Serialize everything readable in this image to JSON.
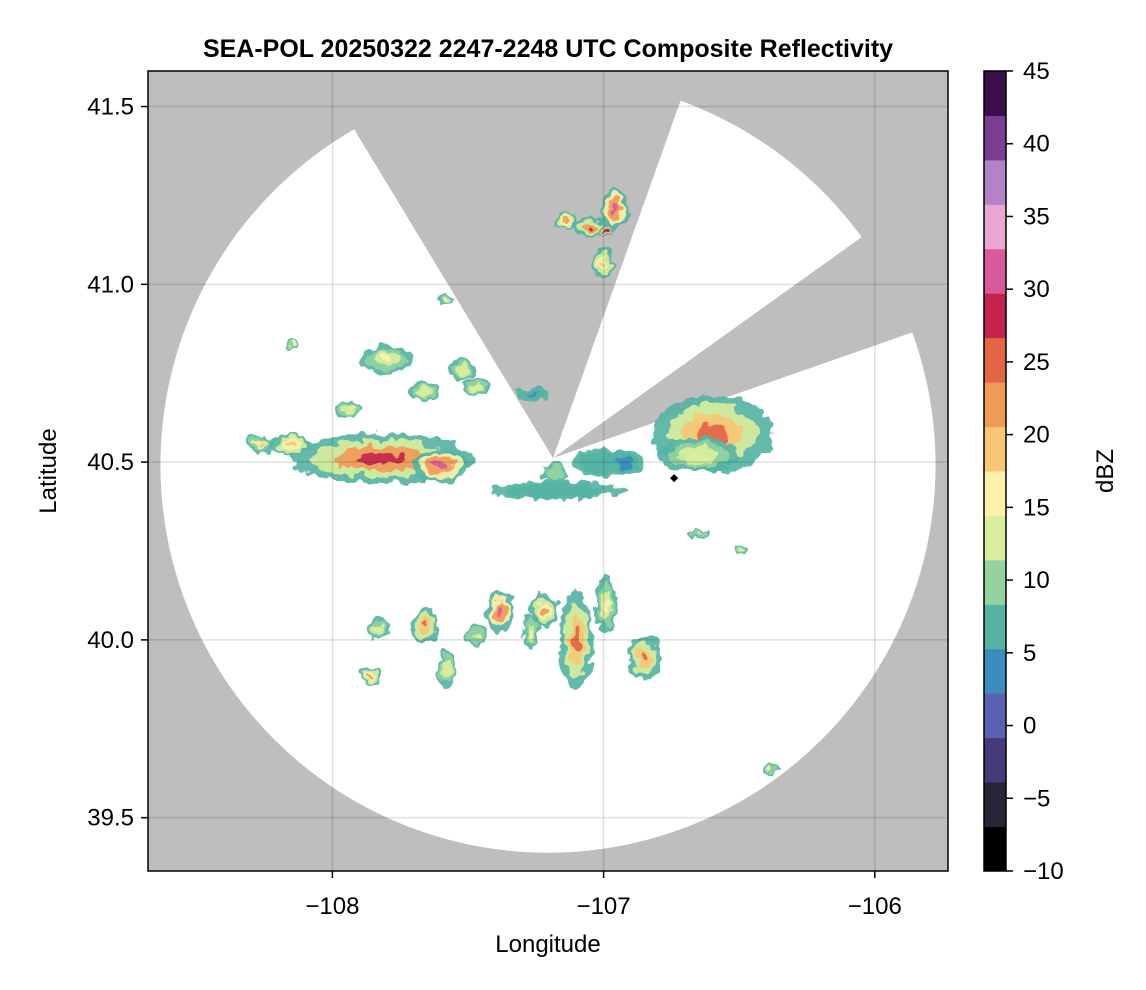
{
  "chart_data": {
    "type": "heatmap",
    "title": "SEA-POL 20250322 2247-2248 UTC Composite Reflectivity",
    "xlabel": "Longitude",
    "ylabel": "Latitude",
    "xlim": [
      -108.68,
      -105.73
    ],
    "ylim": [
      39.35,
      41.6
    ],
    "xticks": [
      -108,
      -107,
      -106
    ],
    "xtick_labels": [
      "−108",
      "−107",
      "−106"
    ],
    "yticks": [
      39.5,
      40.0,
      40.5,
      41.0,
      41.5
    ],
    "ytick_labels": [
      "39.5",
      "40.0",
      "40.5",
      "41.0",
      "41.5"
    ],
    "grid": true,
    "radar_site": {
      "lon": -106.75,
      "lat": 40.46
    },
    "range_circle_radius_deg_lat": 1.09,
    "blocked_sectors": [
      {
        "from_azimuth_deg": -30,
        "to_azimuth_deg": 20
      },
      {
        "from_azimuth_deg": 54,
        "to_azimuth_deg": 70
      }
    ],
    "colorbar": {
      "label": "dBZ",
      "min": -10,
      "max": 45,
      "ticks": [
        -10,
        -5,
        0,
        5,
        10,
        15,
        20,
        25,
        30,
        35,
        40,
        45
      ],
      "tick_labels": [
        "−10",
        "−5",
        "0",
        "5",
        "10",
        "15",
        "20",
        "25",
        "30",
        "35",
        "40",
        "45"
      ],
      "colors": [
        "#000000",
        "#2a2437",
        "#463a7a",
        "#5a60b2",
        "#3b8dbe",
        "#56b4a4",
        "#94d2a0",
        "#d8ee9c",
        "#fbf1a8",
        "#f7c775",
        "#f09a58",
        "#e46446",
        "#c4244c",
        "#d95a9b",
        "#e9a7d1",
        "#b482c6",
        "#7a3f91",
        "#3b0f4a"
      ]
    },
    "cells": [
      {
        "lon": -107.82,
        "lat": 40.51,
        "rx": 0.34,
        "ry": 0.07,
        "peak_dbz": 27
      },
      {
        "lon": -107.6,
        "lat": 40.49,
        "rx": 0.1,
        "ry": 0.05,
        "peak_dbz": 30
      },
      {
        "lon": -108.15,
        "lat": 40.55,
        "rx": 0.07,
        "ry": 0.03,
        "peak_dbz": 20
      },
      {
        "lon": -108.26,
        "lat": 40.55,
        "rx": 0.05,
        "ry": 0.025,
        "peak_dbz": 18
      },
      {
        "lon": -107.17,
        "lat": 40.42,
        "rx": 0.25,
        "ry": 0.025,
        "peak_dbz": 8
      },
      {
        "lon": -107.0,
        "lat": 40.5,
        "rx": 0.12,
        "ry": 0.04,
        "peak_dbz": 8
      },
      {
        "lon": -106.6,
        "lat": 40.58,
        "rx": 0.22,
        "ry": 0.11,
        "peak_dbz": 26
      },
      {
        "lon": -106.65,
        "lat": 40.52,
        "rx": 0.15,
        "ry": 0.05,
        "peak_dbz": 14
      },
      {
        "lon": -106.92,
        "lat": 40.5,
        "rx": 0.07,
        "ry": 0.035,
        "peak_dbz": 3
      },
      {
        "lon": -107.26,
        "lat": 40.69,
        "rx": 0.06,
        "ry": 0.02,
        "peak_dbz": 5
      },
      {
        "lon": -107.18,
        "lat": 40.47,
        "rx": 0.05,
        "ry": 0.03,
        "peak_dbz": 10
      },
      {
        "lon": -106.96,
        "lat": 41.21,
        "rx": 0.05,
        "ry": 0.06,
        "peak_dbz": 30
      },
      {
        "lon": -107.05,
        "lat": 41.16,
        "rx": 0.06,
        "ry": 0.03,
        "peak_dbz": 27
      },
      {
        "lon": -106.99,
        "lat": 41.15,
        "rx": 0.03,
        "ry": 0.015,
        "peak_dbz": 40
      },
      {
        "lon": -107.0,
        "lat": 41.06,
        "rx": 0.04,
        "ry": 0.04,
        "peak_dbz": 20
      },
      {
        "lon": -107.14,
        "lat": 41.18,
        "rx": 0.04,
        "ry": 0.025,
        "peak_dbz": 22
      },
      {
        "lon": -107.58,
        "lat": 40.96,
        "rx": 0.03,
        "ry": 0.015,
        "peak_dbz": 15
      },
      {
        "lon": -107.52,
        "lat": 40.76,
        "rx": 0.05,
        "ry": 0.03,
        "peak_dbz": 14
      },
      {
        "lon": -107.8,
        "lat": 40.79,
        "rx": 0.1,
        "ry": 0.04,
        "peak_dbz": 15
      },
      {
        "lon": -107.66,
        "lat": 40.7,
        "rx": 0.06,
        "ry": 0.03,
        "peak_dbz": 14
      },
      {
        "lon": -107.47,
        "lat": 40.71,
        "rx": 0.05,
        "ry": 0.025,
        "peak_dbz": 14
      },
      {
        "lon": -107.94,
        "lat": 40.65,
        "rx": 0.05,
        "ry": 0.02,
        "peak_dbz": 14
      },
      {
        "lon": -108.15,
        "lat": 40.83,
        "rx": 0.02,
        "ry": 0.015,
        "peak_dbz": 15
      },
      {
        "lon": -107.1,
        "lat": 40.0,
        "rx": 0.06,
        "ry": 0.14,
        "peak_dbz": 24
      },
      {
        "lon": -107.22,
        "lat": 40.08,
        "rx": 0.05,
        "ry": 0.05,
        "peak_dbz": 22
      },
      {
        "lon": -107.38,
        "lat": 40.08,
        "rx": 0.05,
        "ry": 0.06,
        "peak_dbz": 30
      },
      {
        "lon": -107.27,
        "lat": 40.02,
        "rx": 0.03,
        "ry": 0.05,
        "peak_dbz": 16
      },
      {
        "lon": -107.66,
        "lat": 40.04,
        "rx": 0.05,
        "ry": 0.05,
        "peak_dbz": 25
      },
      {
        "lon": -107.58,
        "lat": 39.92,
        "rx": 0.03,
        "ry": 0.06,
        "peak_dbz": 14
      },
      {
        "lon": -107.83,
        "lat": 40.03,
        "rx": 0.04,
        "ry": 0.03,
        "peak_dbz": 14
      },
      {
        "lon": -107.86,
        "lat": 39.9,
        "rx": 0.04,
        "ry": 0.025,
        "peak_dbz": 22
      },
      {
        "lon": -106.85,
        "lat": 39.95,
        "rx": 0.06,
        "ry": 0.06,
        "peak_dbz": 24
      },
      {
        "lon": -106.99,
        "lat": 40.1,
        "rx": 0.04,
        "ry": 0.08,
        "peak_dbz": 16
      },
      {
        "lon": -107.47,
        "lat": 40.01,
        "rx": 0.04,
        "ry": 0.03,
        "peak_dbz": 13
      },
      {
        "lon": -106.65,
        "lat": 40.3,
        "rx": 0.04,
        "ry": 0.015,
        "peak_dbz": 13
      },
      {
        "lon": -106.5,
        "lat": 40.25,
        "rx": 0.02,
        "ry": 0.015,
        "peak_dbz": 14
      },
      {
        "lon": -106.38,
        "lat": 39.64,
        "rx": 0.03,
        "ry": 0.015,
        "peak_dbz": 16
      }
    ],
    "markers": [
      {
        "lon": -106.74,
        "lat": 40.455,
        "color": "#000000"
      }
    ]
  }
}
